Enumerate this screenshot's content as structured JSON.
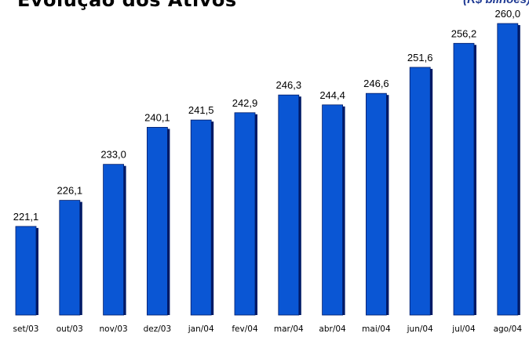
{
  "header": {
    "title": "Evolução dos Ativos",
    "unit": "(R$ bilhões)"
  },
  "colors": {
    "bar_fill": "#0a56d4",
    "bar_shadow": "#001a66",
    "unit_text": "#1f3a93"
  },
  "chart_data": {
    "type": "bar",
    "title": "Evolução dos Ativos",
    "categories": [
      "set/03",
      "out/03",
      "nov/03",
      "dez/03",
      "jan/04",
      "fev/04",
      "mar/04",
      "abr/04",
      "mai/04",
      "jun/04",
      "jul/04",
      "ago/04"
    ],
    "values": [
      221.1,
      226.1,
      233.0,
      240.1,
      241.5,
      242.9,
      246.3,
      244.4,
      246.6,
      251.6,
      256.2,
      260.0
    ],
    "value_labels": [
      "221,1",
      "226,1",
      "233,0",
      "240,1",
      "241,5",
      "242,9",
      "246,3",
      "244,4",
      "246,6",
      "251,6",
      "256,2",
      "260,0"
    ],
    "xlabel": "",
    "ylabel": "",
    "grid": false,
    "legend": "none"
  }
}
